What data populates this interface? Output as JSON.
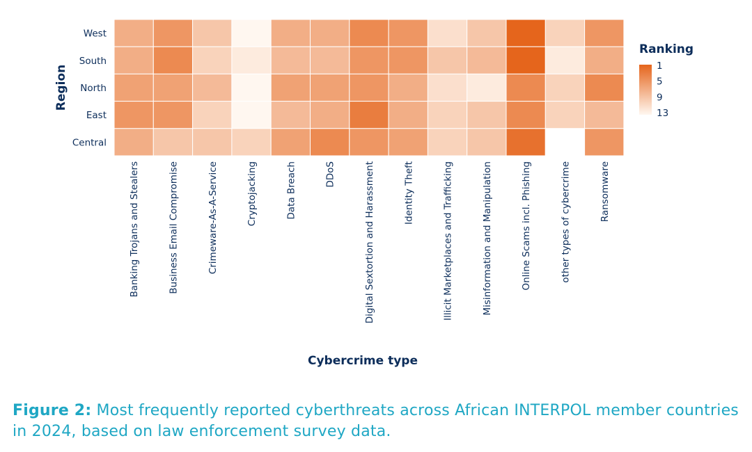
{
  "caption": {
    "lead": "Figure 2:",
    "text": "Most frequently reported cyberthreats across African INTERPOL member countries in 2024, based on law enforcement survey data."
  },
  "chart_data": {
    "type": "heatmap",
    "xlabel": "Cybercrime type",
    "ylabel": "Region",
    "categories": [
      "Banking Trojans and Stealers",
      "Business Email Compromise",
      "Crimeware-As-A-Service",
      "Cryptojacking",
      "Data Breach",
      "DDoS",
      "Digital Sextortion and Harassment",
      "Identity Theft",
      "Illicit Marketplaces and Trafficking",
      "Misinformation and Manipulation",
      "Online Scams incl. Phishing",
      "other types of cybercrime",
      "Ransomware"
    ],
    "rows": [
      "West",
      "South",
      "North",
      "East",
      "Central"
    ],
    "values": [
      [
        7,
        5,
        9,
        13,
        7,
        7,
        4,
        5,
        11,
        9,
        1,
        10,
        5
      ],
      [
        7,
        4,
        10,
        12,
        8,
        8,
        5,
        5,
        9,
        8,
        1,
        12,
        7
      ],
      [
        6,
        6,
        8,
        13,
        6,
        6,
        5,
        7,
        11,
        12,
        4,
        10,
        4
      ],
      [
        5,
        5,
        10,
        13,
        8,
        7,
        3,
        7,
        10,
        9,
        4,
        10,
        8
      ],
      [
        7,
        9,
        9,
        10,
        6,
        4,
        5,
        6,
        10,
        9,
        2,
        null,
        5
      ]
    ],
    "legend": {
      "title": "Ranking",
      "ticks": [
        1,
        5,
        9,
        13
      ],
      "position": "right",
      "color_low_rank": "#e5651c",
      "color_high_rank": "#fff7f0"
    }
  }
}
